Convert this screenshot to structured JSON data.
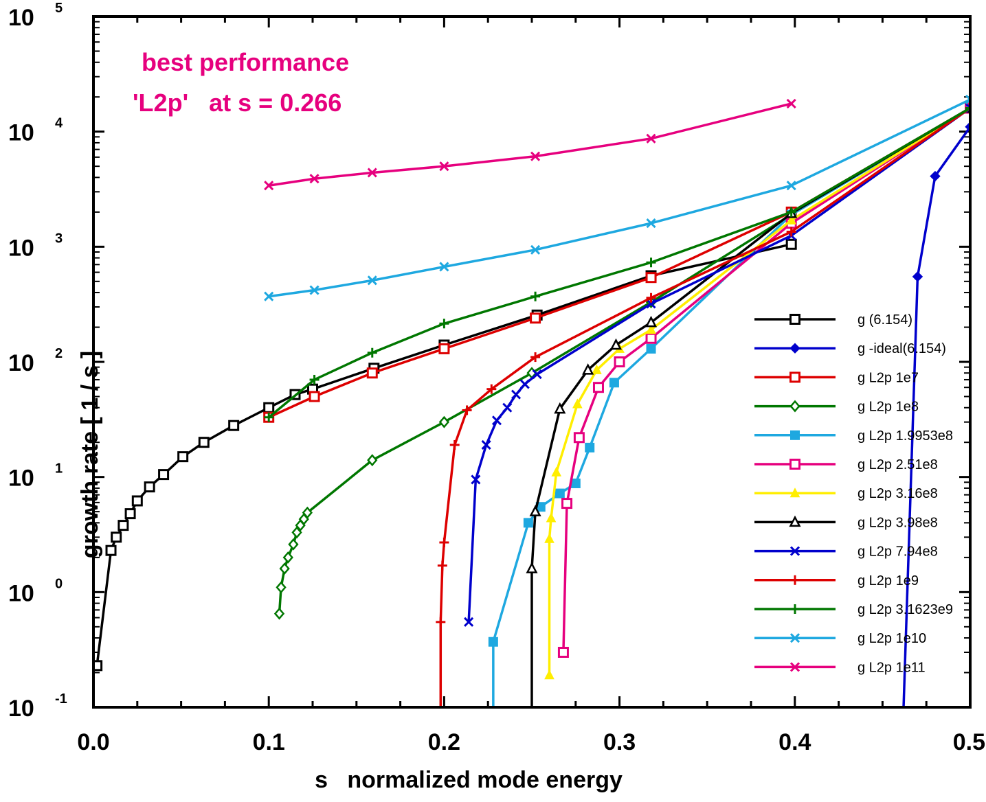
{
  "chart_data": {
    "type": "line",
    "xlabel": "s   normalized mode energy",
    "ylabel": "growth rate [ 1 / s ]",
    "xlim": [
      0.0,
      0.5
    ],
    "ylim": [
      0.1,
      100000
    ],
    "yscale": "log",
    "x_ticks": [
      "0.0",
      "0.1",
      "0.2",
      "0.3",
      "0.4",
      "0.5"
    ],
    "y_ticks": [
      {
        "base": "10",
        "exp": "-1"
      },
      {
        "base": "10",
        "exp": "0"
      },
      {
        "base": "10",
        "exp": "1"
      },
      {
        "base": "10",
        "exp": "2"
      },
      {
        "base": "10",
        "exp": "3"
      },
      {
        "base": "10",
        "exp": "4"
      },
      {
        "base": "10",
        "exp": "5"
      }
    ],
    "annotation": {
      "line1": "best performance",
      "line2": "'L2p'   at s = 0.266",
      "color": "#e6007e"
    },
    "legend_position": "right",
    "series": [
      {
        "name": "g   (6.154)",
        "color": "#000000",
        "marker": "open-square",
        "points": [
          [
            0.002,
            0.23
          ],
          [
            0.01,
            2.3
          ],
          [
            0.013,
            3.0
          ],
          [
            0.017,
            3.8
          ],
          [
            0.021,
            4.8
          ],
          [
            0.025,
            6.2
          ],
          [
            0.032,
            8.2
          ],
          [
            0.04,
            10.5
          ],
          [
            0.051,
            15
          ],
          [
            0.063,
            20
          ],
          [
            0.08,
            28
          ],
          [
            0.1,
            40
          ],
          [
            0.115,
            52
          ],
          [
            0.125,
            58
          ],
          [
            0.16,
            88
          ],
          [
            0.2,
            140
          ],
          [
            0.253,
            255
          ],
          [
            0.318,
            560
          ],
          [
            0.398,
            1050
          ]
        ]
      },
      {
        "name": "g -ideal(6.154)",
        "color": "#0000cc",
        "marker": "filled-diamond",
        "points": [
          [
            0.462,
            0.1
          ],
          [
            0.47,
            550
          ],
          [
            0.48,
            4100
          ],
          [
            0.5,
            11000
          ]
        ]
      },
      {
        "name": "g L2p 1e7",
        "color": "#dd0000",
        "marker": "open-square",
        "points": [
          [
            0.1,
            33
          ],
          [
            0.126,
            50
          ],
          [
            0.159,
            80
          ],
          [
            0.2,
            130
          ],
          [
            0.252,
            240
          ],
          [
            0.318,
            540
          ],
          [
            0.398,
            2000
          ],
          [
            0.5,
            16000
          ]
        ]
      },
      {
        "name": "g L2p 1e8",
        "color": "#007700",
        "marker": "open-diamond",
        "points": [
          [
            0.106,
            0.65
          ],
          [
            0.107,
            1.1
          ],
          [
            0.109,
            1.6
          ],
          [
            0.111,
            2.0
          ],
          [
            0.114,
            2.6
          ],
          [
            0.116,
            3.3
          ],
          [
            0.118,
            3.8
          ],
          [
            0.12,
            4.3
          ],
          [
            0.122,
            4.9
          ],
          [
            0.159,
            14
          ],
          [
            0.2,
            30
          ],
          [
            0.25,
            80
          ],
          [
            0.318,
            330
          ],
          [
            0.398,
            1900
          ],
          [
            0.5,
            16000
          ]
        ]
      },
      {
        "name": "g L2p 1.9953e8",
        "color": "#1ea8e0",
        "marker": "filled-square",
        "points": [
          [
            0.228,
            0.1
          ],
          [
            0.228,
            0.37
          ],
          [
            0.248,
            4.0
          ],
          [
            0.255,
            5.5
          ],
          [
            0.266,
            7.2
          ],
          [
            0.275,
            8.8
          ],
          [
            0.283,
            18
          ],
          [
            0.297,
            66
          ],
          [
            0.318,
            130
          ],
          [
            0.398,
            1900
          ],
          [
            0.5,
            16000
          ]
        ]
      },
      {
        "name": "g L2p 2.51e8",
        "color": "#e6007e",
        "marker": "open-square",
        "points": [
          [
            0.268,
            0.3
          ],
          [
            0.27,
            5.9
          ],
          [
            0.277,
            22
          ],
          [
            0.288,
            60
          ],
          [
            0.3,
            100
          ],
          [
            0.318,
            160
          ],
          [
            0.398,
            1600
          ],
          [
            0.5,
            16000
          ]
        ]
      },
      {
        "name": "g L2p 3.16e8",
        "color": "#ffee00",
        "marker": "filled-triangle",
        "points": [
          [
            0.26,
            0.19
          ],
          [
            0.26,
            2.9
          ],
          [
            0.261,
            4.4
          ],
          [
            0.264,
            11
          ],
          [
            0.276,
            43
          ],
          [
            0.287,
            85
          ],
          [
            0.3,
            130
          ],
          [
            0.318,
            190
          ],
          [
            0.398,
            1700
          ],
          [
            0.5,
            16000
          ]
        ]
      },
      {
        "name": "g L2p 3.98e8",
        "color": "#000000",
        "marker": "open-triangle",
        "points": [
          [
            0.25,
            0.1
          ],
          [
            0.25,
            1.6
          ],
          [
            0.252,
            5.0
          ],
          [
            0.266,
            39
          ],
          [
            0.282,
            85
          ],
          [
            0.298,
            140
          ],
          [
            0.318,
            220
          ],
          [
            0.398,
            1950
          ],
          [
            0.5,
            16000
          ]
        ]
      },
      {
        "name": "g L2p 7.94e8",
        "color": "#0000cc",
        "marker": "x",
        "points": [
          [
            0.214,
            0.55
          ],
          [
            0.218,
            9.5
          ],
          [
            0.224,
            19
          ],
          [
            0.23,
            31
          ],
          [
            0.236,
            40
          ],
          [
            0.241,
            52
          ],
          [
            0.246,
            64
          ],
          [
            0.253,
            78
          ],
          [
            0.318,
            320
          ],
          [
            0.398,
            1250
          ],
          [
            0.5,
            16000
          ]
        ]
      },
      {
        "name": "g L2p 1e9",
        "color": "#dd0000",
        "marker": "plus",
        "points": [
          [
            0.198,
            0.1
          ],
          [
            0.198,
            0.55
          ],
          [
            0.199,
            1.7
          ],
          [
            0.2,
            2.7
          ],
          [
            0.206,
            19
          ],
          [
            0.213,
            38
          ],
          [
            0.227,
            58
          ],
          [
            0.252,
            110
          ],
          [
            0.318,
            360
          ],
          [
            0.398,
            1350
          ],
          [
            0.5,
            16000
          ]
        ]
      },
      {
        "name": "g L2p 3.1623e9",
        "color": "#007700",
        "marker": "plus",
        "points": [
          [
            0.1,
            33
          ],
          [
            0.126,
            70
          ],
          [
            0.159,
            120
          ],
          [
            0.2,
            215
          ],
          [
            0.252,
            370
          ],
          [
            0.318,
            730
          ],
          [
            0.398,
            2000
          ],
          [
            0.5,
            16000
          ]
        ]
      },
      {
        "name": "g L2p 1e10",
        "color": "#1ea8e0",
        "marker": "x",
        "points": [
          [
            0.1,
            370
          ],
          [
            0.126,
            420
          ],
          [
            0.159,
            510
          ],
          [
            0.2,
            670
          ],
          [
            0.252,
            940
          ],
          [
            0.318,
            1600
          ],
          [
            0.398,
            3400
          ],
          [
            0.5,
            19000
          ]
        ]
      },
      {
        "name": "g L2p 1e11",
        "color": "#e6007e",
        "marker": "x",
        "points": [
          [
            0.1,
            3400
          ],
          [
            0.126,
            3900
          ],
          [
            0.159,
            4400
          ],
          [
            0.2,
            5000
          ],
          [
            0.252,
            6100
          ],
          [
            0.318,
            8700
          ],
          [
            0.398,
            17500
          ]
        ]
      }
    ]
  }
}
